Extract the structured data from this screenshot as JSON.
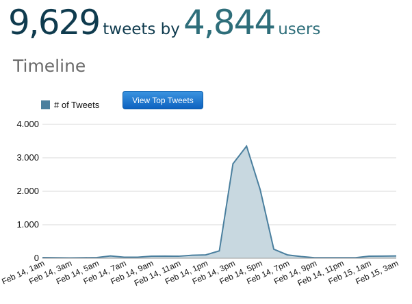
{
  "stats": {
    "tweets_count": "9,629",
    "tweets_label": "tweets by",
    "users_count": "4,844",
    "users_label": "users"
  },
  "section": {
    "title": "Timeline"
  },
  "actions": {
    "top_tweets_button": "View Top Tweets"
  },
  "colors": {
    "series_stroke": "#4a7f9e",
    "series_fill": "#c8d8e0",
    "legend_swatch": "#4a7f9e",
    "grid": "#d9d9d9",
    "axis": "#9a9a9a"
  },
  "chart_data": {
    "type": "area",
    "series": [
      {
        "name": "# of Tweets",
        "values": [
          20,
          15,
          10,
          15,
          20,
          70,
          30,
          30,
          60,
          65,
          60,
          90,
          100,
          220,
          2820,
          3350,
          2050,
          270,
          100,
          50,
          15,
          15,
          15,
          15,
          60,
          65,
          70
        ]
      }
    ],
    "x": [
      "Feb 14, 1am",
      "",
      "Feb 14, 3am",
      "",
      "Feb 14, 5am",
      "",
      "Feb 14, 7am",
      "",
      "Feb 14, 9am",
      "",
      "Feb 14, 11am",
      "",
      "Feb 14, 1pm",
      "",
      "Feb 14, 3pm",
      "",
      "Feb 14, 5pm",
      "",
      "Feb 14, 7pm",
      "",
      "Feb 14, 9pm",
      "",
      "Feb 14, 11pm",
      "",
      "Feb 15, 1am",
      "",
      "Feb 15, 3am"
    ],
    "y_ticks": [
      "0",
      "1.000",
      "2.000",
      "3.000",
      "4.000"
    ],
    "ylim": [
      0,
      4000
    ],
    "grid": true,
    "legend_position": "top-left"
  }
}
